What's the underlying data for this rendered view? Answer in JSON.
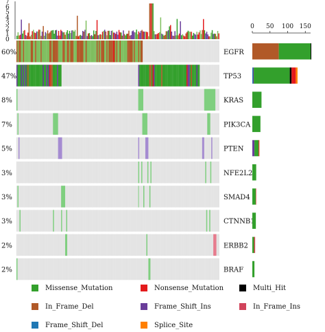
{
  "chart_data": {
    "type": "oncoplot",
    "colors": {
      "Missense_Mutation": "#33a02c",
      "Nonsense_Mutation": "#e31a1c",
      "Multi_Hit": "#000000",
      "In_Frame_Del": "#b15928",
      "Frame_Shift_Ins": "#6a3d9a",
      "In_Frame_Ins": "#d1435b",
      "Frame_Shift_Del": "#1f78b4",
      "Splice_Site": "#ff7f00",
      "background": "#e6e6e6"
    },
    "top_axis": {
      "ticks": [
        "0",
        "1",
        "2",
        "3",
        "4",
        "5",
        "6",
        "7"
      ]
    },
    "right_axis": {
      "ticks": [
        0,
        50,
        100,
        150
      ],
      "max": 165
    },
    "genes": [
      {
        "name": "EGFR",
        "percent": "60%",
        "counts": {
          "In_Frame_Del": 75,
          "Missense_Mutation": 90,
          "Multi_Hit": 2
        },
        "segments": [
          [
            0.0,
            0.62,
            "mixed"
          ]
        ]
      },
      {
        "name": "TP53",
        "percent": "47%",
        "counts": {
          "Frame_Shift_Del": 2,
          "Frame_Shift_Ins": 2,
          "Missense_Mutation": 102,
          "Multi_Hit": 5,
          "Nonsense_Mutation": 12,
          "Splice_Site": 5
        },
        "segments": [
          [
            0.0,
            0.22,
            "mixed"
          ],
          [
            0.6,
            0.9,
            "mixed"
          ]
        ]
      },
      {
        "name": "KRAS",
        "percent": "8%",
        "counts": {
          "Missense_Mutation": 26
        },
        "segments": [
          [
            0.6,
            0.625,
            "m"
          ],
          [
            0.925,
            0.98,
            "m"
          ],
          [
            0.0,
            0.005,
            "m"
          ]
        ]
      },
      {
        "name": "PIK3CA",
        "percent": "7%",
        "counts": {
          "Missense_Mutation": 23
        },
        "segments": [
          [
            0.18,
            0.205,
            "m"
          ],
          [
            0.62,
            0.645,
            "m"
          ],
          [
            0.94,
            0.955,
            "m"
          ],
          [
            0.005,
            0.01,
            "m"
          ]
        ]
      },
      {
        "name": "PTEN",
        "percent": "5%",
        "counts": {
          "Missense_Mutation": 12,
          "Frame_Shift_Ins": 6,
          "Nonsense_Mutation": 2
        },
        "segments": [
          [
            0.01,
            0.015,
            "fsi"
          ],
          [
            0.205,
            0.225,
            "fsi"
          ],
          [
            0.6,
            0.605,
            "fsi"
          ],
          [
            0.635,
            0.65,
            "fsi"
          ],
          [
            0.915,
            0.925,
            "fsi"
          ],
          [
            0.96,
            0.965,
            "fsi"
          ]
        ]
      },
      {
        "name": "NFE2L2",
        "percent": "3%",
        "counts": {
          "Missense_Mutation": 11
        },
        "segments": [
          [
            0.6,
            0.605,
            "m"
          ],
          [
            0.615,
            0.62,
            "m"
          ],
          [
            0.645,
            0.65,
            "m"
          ],
          [
            0.66,
            0.665,
            "m"
          ],
          [
            0.93,
            0.935,
            "m"
          ],
          [
            0.955,
            0.96,
            "m"
          ]
        ]
      },
      {
        "name": "SMAD4",
        "percent": "3%",
        "counts": {
          "Missense_Mutation": 10,
          "Nonsense_Mutation": 1
        },
        "segments": [
          [
            0.005,
            0.01,
            "m"
          ],
          [
            0.22,
            0.24,
            "m"
          ],
          [
            0.625,
            0.63,
            "m"
          ],
          [
            0.655,
            0.66,
            "m"
          ],
          [
            0.6,
            0.603,
            "m"
          ]
        ]
      },
      {
        "name": "CTNNB1",
        "percent": "3%",
        "counts": {
          "Missense_Mutation": 10
        },
        "segments": [
          [
            0.015,
            0.02,
            "m"
          ],
          [
            0.18,
            0.185,
            "m"
          ],
          [
            0.22,
            0.225,
            "m"
          ],
          [
            0.245,
            0.25,
            "m"
          ],
          [
            0.95,
            0.955,
            "m"
          ],
          [
            0.935,
            0.94,
            "m"
          ]
        ]
      },
      {
        "name": "ERBB2",
        "percent": "2%",
        "counts": {
          "Missense_Mutation": 5,
          "Nonsense_Mutation": 1,
          "In_Frame_Ins": 2
        },
        "segments": [
          [
            0.24,
            0.25,
            "m"
          ],
          [
            0.64,
            0.645,
            "m"
          ],
          [
            0.97,
            0.985,
            "ifi"
          ]
        ]
      },
      {
        "name": "BRAF",
        "percent": "2%",
        "counts": {
          "Missense_Mutation": 6
        },
        "segments": [
          [
            0.0,
            0.005,
            "m"
          ],
          [
            0.65,
            0.66,
            "m"
          ]
        ]
      }
    ],
    "legend": [
      "Missense_Mutation",
      "Nonsense_Mutation",
      "Multi_Hit",
      "In_Frame_Del",
      "Frame_Shift_Ins",
      "In_Frame_Ins",
      "Frame_Shift_Del",
      "Splice_Site"
    ]
  }
}
